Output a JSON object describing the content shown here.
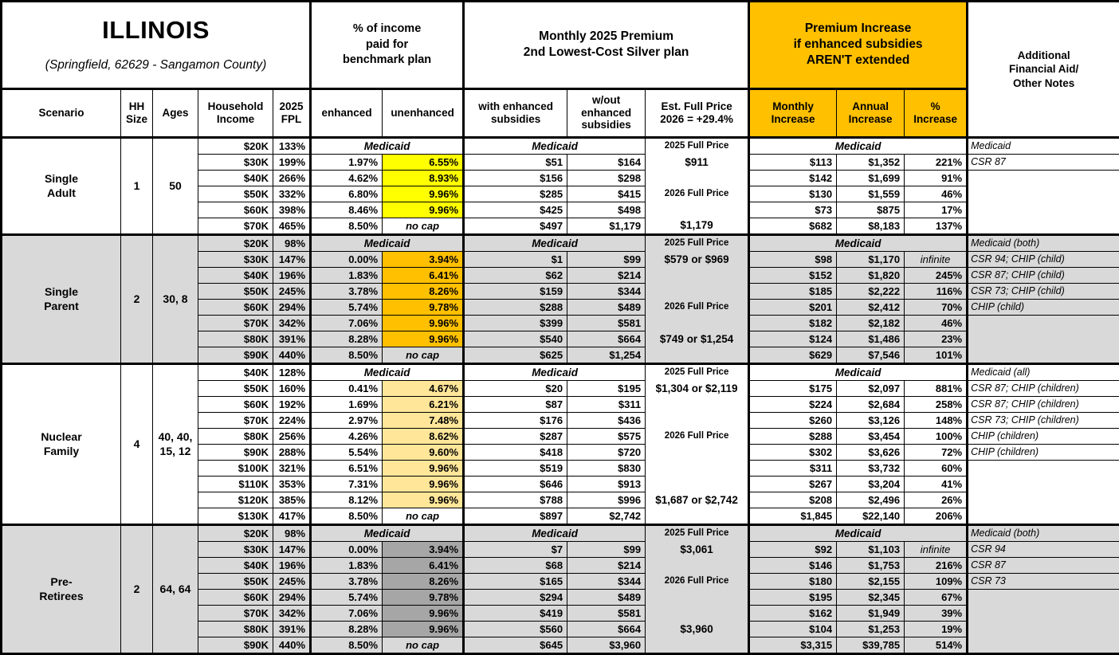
{
  "title": {
    "main": "ILLINOIS",
    "sub": "(Springfield, 62629 - Sangamon County)"
  },
  "colors": {
    "header_orange": "#FFC000",
    "highlight_yellow": "#FFFF00",
    "highlight_orange": "#FFC000",
    "highlight_tan": "#FFE699",
    "highlight_dark_gray": "#A6A6A6",
    "row_gray": "#D9D9D9",
    "row_white": "#FFFFFF"
  },
  "labels": {
    "medicaid": "Medicaid",
    "no_cap": "no cap",
    "infinite": "infinite"
  },
  "header": {
    "groups": {
      "income_pct": "% of income\npaid for\nbenchmark plan",
      "premium": "Monthly 2025 Premium\n2nd Lowest-Cost Silver plan",
      "increase": "Premium Increase\nif enhanced subsidies\nAREN'T extended",
      "notes": "Additional\nFinancial Aid/\nOther Notes"
    },
    "cols": {
      "scenario": "Scenario",
      "hh": "HH\nSize",
      "ages": "Ages",
      "income": "Household\nIncome",
      "fpl": "2025\nFPL",
      "enhanced": "enhanced",
      "unenhanced": "unenhanced",
      "with_sub": "with enhanced\nsubsidies",
      "wout_sub": "w/out\nenhanced\nsubsidies",
      "est": "Est. Full Price\n2026 = +29.4%",
      "monthly": "Monthly\nIncrease",
      "annual": "Annual\nIncrease",
      "pct": "%\nIncrease"
    }
  },
  "scenarios": [
    {
      "name": "Single\nAdult",
      "hh_size": "1",
      "ages": "50",
      "row_bg": "#FFFFFF",
      "highlight": "#FFFF00",
      "rows": [
        {
          "medicaid": true,
          "income": "$20K",
          "fpl": "133%",
          "est": "2025 Full Price",
          "est_kind": "label",
          "note": "Medicaid"
        },
        {
          "income": "$30K",
          "fpl": "199%",
          "enh": "1.97%",
          "unenh": "6.55%",
          "with": "$51",
          "wout": "$164",
          "est": "$911",
          "est_kind": "money",
          "monthly": "$113",
          "annual": "$1,352",
          "pct": "221%",
          "note": "CSR 87"
        },
        {
          "income": "$40K",
          "fpl": "266%",
          "enh": "4.62%",
          "unenh": "8.93%",
          "with": "$156",
          "wout": "$298",
          "est": "",
          "est_kind": "",
          "monthly": "$142",
          "annual": "$1,699",
          "pct": "91%",
          "note": ""
        },
        {
          "income": "$50K",
          "fpl": "332%",
          "enh": "6.80%",
          "unenh": "9.96%",
          "with": "$285",
          "wout": "$415",
          "est": "2026 Full Price",
          "est_kind": "label",
          "monthly": "$130",
          "annual": "$1,559",
          "pct": "46%",
          "note": ""
        },
        {
          "income": "$60K",
          "fpl": "398%",
          "enh": "8.46%",
          "unenh": "9.96%",
          "with": "$425",
          "wout": "$498",
          "est": "",
          "est_kind": "",
          "monthly": "$73",
          "annual": "$875",
          "pct": "17%",
          "note": ""
        },
        {
          "income": "$70K",
          "fpl": "465%",
          "enh": "8.50%",
          "unenh": "no cap",
          "nocap": true,
          "with": "$497",
          "wout": "$1,179",
          "est": "$1,179",
          "est_kind": "money",
          "monthly": "$682",
          "annual": "$8,183",
          "pct": "137%",
          "note": ""
        }
      ]
    },
    {
      "name": "Single\nParent",
      "hh_size": "2",
      "ages": "30, 8",
      "row_bg": "#D9D9D9",
      "highlight": "#FFC000",
      "rows": [
        {
          "medicaid": true,
          "income": "$20K",
          "fpl": "98%",
          "est": "2025 Full Price",
          "est_kind": "label",
          "note": "Medicaid (both)"
        },
        {
          "income": "$30K",
          "fpl": "147%",
          "enh": "0.00%",
          "unenh": "3.94%",
          "with": "$1",
          "wout": "$99",
          "est": "$579 or $969",
          "est_kind": "money",
          "monthly": "$98",
          "annual": "$1,170",
          "pct": "infinite",
          "note": "CSR 94; CHIP (child)"
        },
        {
          "income": "$40K",
          "fpl": "196%",
          "enh": "1.83%",
          "unenh": "6.41%",
          "with": "$62",
          "wout": "$214",
          "est": "",
          "est_kind": "",
          "monthly": "$152",
          "annual": "$1,820",
          "pct": "245%",
          "note": "CSR 87; CHIP (child)"
        },
        {
          "income": "$50K",
          "fpl": "245%",
          "enh": "3.78%",
          "unenh": "8.26%",
          "with": "$159",
          "wout": "$344",
          "est": "",
          "est_kind": "",
          "monthly": "$185",
          "annual": "$2,222",
          "pct": "116%",
          "note": "CSR 73; CHIP (child)"
        },
        {
          "income": "$60K",
          "fpl": "294%",
          "enh": "5.74%",
          "unenh": "9.78%",
          "with": "$288",
          "wout": "$489",
          "est": "2026 Full Price",
          "est_kind": "label",
          "monthly": "$201",
          "annual": "$2,412",
          "pct": "70%",
          "note": "CHIP (child)"
        },
        {
          "income": "$70K",
          "fpl": "342%",
          "enh": "7.06%",
          "unenh": "9.96%",
          "with": "$399",
          "wout": "$581",
          "est": "",
          "est_kind": "",
          "monthly": "$182",
          "annual": "$2,182",
          "pct": "46%",
          "note": ""
        },
        {
          "income": "$80K",
          "fpl": "391%",
          "enh": "8.28%",
          "unenh": "9.96%",
          "with": "$540",
          "wout": "$664",
          "est": "$749 or $1,254",
          "est_kind": "money",
          "monthly": "$124",
          "annual": "$1,486",
          "pct": "23%",
          "note": ""
        },
        {
          "income": "$90K",
          "fpl": "440%",
          "enh": "8.50%",
          "unenh": "no cap",
          "nocap": true,
          "with": "$625",
          "wout": "$1,254",
          "est": "",
          "est_kind": "",
          "monthly": "$629",
          "annual": "$7,546",
          "pct": "101%",
          "note": ""
        }
      ]
    },
    {
      "name": "Nuclear\nFamily",
      "hh_size": "4",
      "ages": "40, 40,\n15, 12",
      "row_bg": "#FFFFFF",
      "highlight": "#FFE699",
      "rows": [
        {
          "medicaid": true,
          "income": "$40K",
          "fpl": "128%",
          "est": "2025 Full Price",
          "est_kind": "label",
          "note": "Medicaid (all)"
        },
        {
          "income": "$50K",
          "fpl": "160%",
          "enh": "0.41%",
          "unenh": "4.67%",
          "with": "$20",
          "wout": "$195",
          "est": "$1,304 or $2,119",
          "est_kind": "money",
          "monthly": "$175",
          "annual": "$2,097",
          "pct": "881%",
          "note": "CSR 87; CHIP (children)"
        },
        {
          "income": "$60K",
          "fpl": "192%",
          "enh": "1.69%",
          "unenh": "6.21%",
          "with": "$87",
          "wout": "$311",
          "est": "",
          "est_kind": "",
          "monthly": "$224",
          "annual": "$2,684",
          "pct": "258%",
          "note": "CSR 87; CHIP (children)"
        },
        {
          "income": "$70K",
          "fpl": "224%",
          "enh": "2.97%",
          "unenh": "7.48%",
          "with": "$176",
          "wout": "$436",
          "est": "",
          "est_kind": "",
          "monthly": "$260",
          "annual": "$3,126",
          "pct": "148%",
          "note": "CSR 73; CHIP (children)"
        },
        {
          "income": "$80K",
          "fpl": "256%",
          "enh": "4.26%",
          "unenh": "8.62%",
          "with": "$287",
          "wout": "$575",
          "est": "2026 Full Price",
          "est_kind": "label",
          "monthly": "$288",
          "annual": "$3,454",
          "pct": "100%",
          "note": "CHIP (children)"
        },
        {
          "income": "$90K",
          "fpl": "288%",
          "enh": "5.54%",
          "unenh": "9.60%",
          "with": "$418",
          "wout": "$720",
          "est": "",
          "est_kind": "",
          "monthly": "$302",
          "annual": "$3,626",
          "pct": "72%",
          "note": "CHIP (children)"
        },
        {
          "income": "$100K",
          "fpl": "321%",
          "enh": "6.51%",
          "unenh": "9.96%",
          "with": "$519",
          "wout": "$830",
          "est": "",
          "est_kind": "",
          "monthly": "$311",
          "annual": "$3,732",
          "pct": "60%",
          "note": ""
        },
        {
          "income": "$110K",
          "fpl": "353%",
          "enh": "7.31%",
          "unenh": "9.96%",
          "with": "$646",
          "wout": "$913",
          "est": "",
          "est_kind": "",
          "monthly": "$267",
          "annual": "$3,204",
          "pct": "41%",
          "note": ""
        },
        {
          "income": "$120K",
          "fpl": "385%",
          "enh": "8.12%",
          "unenh": "9.96%",
          "with": "$788",
          "wout": "$996",
          "est": "$1,687 or $2,742",
          "est_kind": "money",
          "monthly": "$208",
          "annual": "$2,496",
          "pct": "26%",
          "note": ""
        },
        {
          "income": "$130K",
          "fpl": "417%",
          "enh": "8.50%",
          "unenh": "no cap",
          "nocap": true,
          "with": "$897",
          "wout": "$2,742",
          "est": "",
          "est_kind": "",
          "monthly": "$1,845",
          "annual": "$22,140",
          "pct": "206%",
          "note": ""
        }
      ]
    },
    {
      "name": "Pre-\nRetirees",
      "hh_size": "2",
      "ages": "64, 64",
      "row_bg": "#D9D9D9",
      "highlight": "#A6A6A6",
      "rows": [
        {
          "medicaid": true,
          "income": "$20K",
          "fpl": "98%",
          "est": "2025 Full Price",
          "est_kind": "label",
          "note": "Medicaid (both)"
        },
        {
          "income": "$30K",
          "fpl": "147%",
          "enh": "0.00%",
          "unenh": "3.94%",
          "with": "$7",
          "wout": "$99",
          "est": "$3,061",
          "est_kind": "money",
          "monthly": "$92",
          "annual": "$1,103",
          "pct": "infinite",
          "note": "CSR 94"
        },
        {
          "income": "$40K",
          "fpl": "196%",
          "enh": "1.83%",
          "unenh": "6.41%",
          "with": "$68",
          "wout": "$214",
          "est": "",
          "est_kind": "",
          "monthly": "$146",
          "annual": "$1,753",
          "pct": "216%",
          "note": "CSR 87"
        },
        {
          "income": "$50K",
          "fpl": "245%",
          "enh": "3.78%",
          "unenh": "8.26%",
          "with": "$165",
          "wout": "$344",
          "est": "2026 Full Price",
          "est_kind": "label",
          "monthly": "$180",
          "annual": "$2,155",
          "pct": "109%",
          "note": "CSR 73"
        },
        {
          "income": "$60K",
          "fpl": "294%",
          "enh": "5.74%",
          "unenh": "9.78%",
          "with": "$294",
          "wout": "$489",
          "est": "",
          "est_kind": "",
          "monthly": "$195",
          "annual": "$2,345",
          "pct": "67%",
          "note": ""
        },
        {
          "income": "$70K",
          "fpl": "342%",
          "enh": "7.06%",
          "unenh": "9.96%",
          "with": "$419",
          "wout": "$581",
          "est": "",
          "est_kind": "",
          "monthly": "$162",
          "annual": "$1,949",
          "pct": "39%",
          "note": ""
        },
        {
          "income": "$80K",
          "fpl": "391%",
          "enh": "8.28%",
          "unenh": "9.96%",
          "with": "$560",
          "wout": "$664",
          "est": "$3,960",
          "est_kind": "money",
          "monthly": "$104",
          "annual": "$1,253",
          "pct": "19%",
          "note": ""
        },
        {
          "income": "$90K",
          "fpl": "440%",
          "enh": "8.50%",
          "unenh": "no cap",
          "nocap": true,
          "with": "$645",
          "wout": "$3,960",
          "est": "",
          "est_kind": "",
          "monthly": "$3,315",
          "annual": "$39,785",
          "pct": "514%",
          "note": ""
        }
      ]
    }
  ]
}
